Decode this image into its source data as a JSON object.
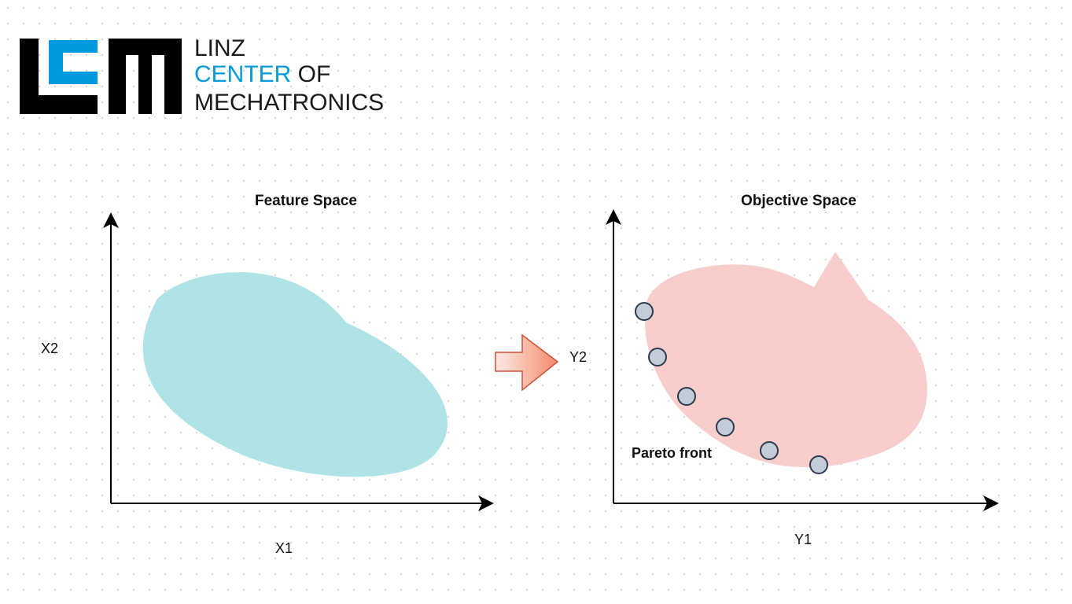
{
  "logo": {
    "line1": "LINZ",
    "line2_accent": "CENTER",
    "line2_rest": " OF",
    "line3": "MECHATRONICS",
    "accent_color": "#0099dd",
    "mark_color": "#000000"
  },
  "feature_space": {
    "title": "Feature Space",
    "x_axis_label": "X1",
    "y_axis_label": "X2",
    "region_color": "#b0e3e6"
  },
  "transform_arrow": {
    "color_start": "#fdeae5",
    "color_end": "#f48a6a",
    "stroke": "#d0503a"
  },
  "objective_space": {
    "title": "Objective Space",
    "x_axis_label": "Y1",
    "y_axis_label": "Y2",
    "region_color": "#f8cecc",
    "pareto_label": "Pareto front",
    "pareto_point_fill": "#c3ccd7",
    "pareto_point_stroke": "#2a3a4a",
    "pareto_point_count": 6
  }
}
